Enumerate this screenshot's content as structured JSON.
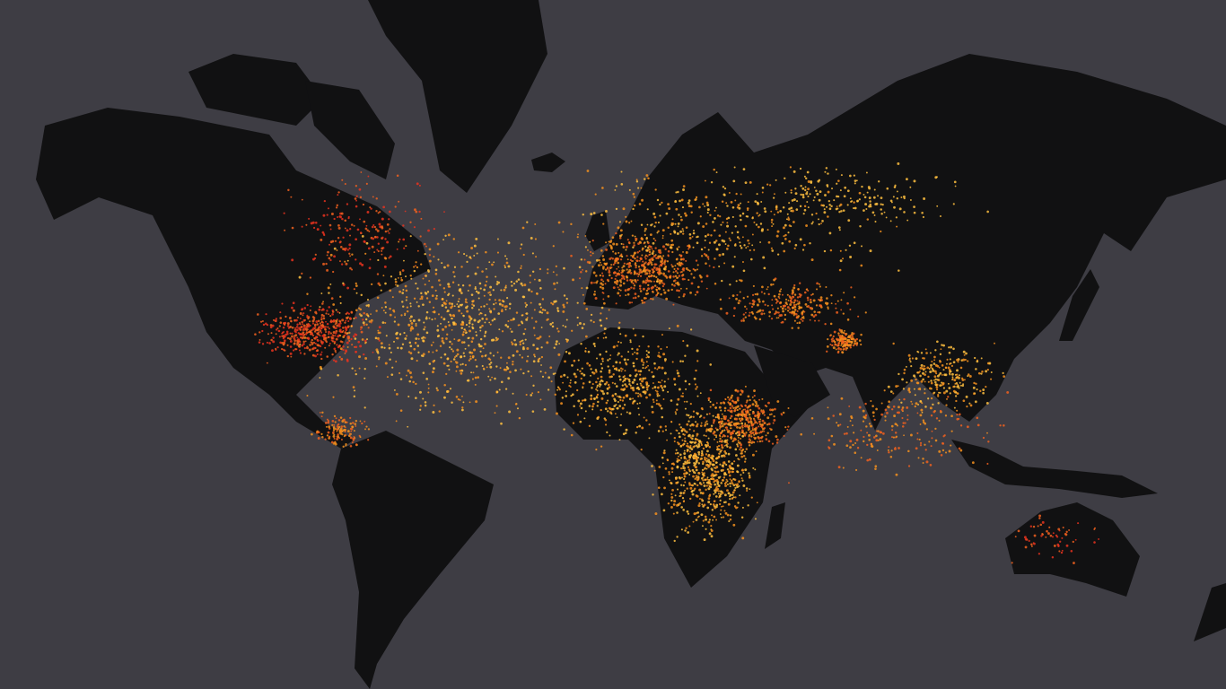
{
  "map": {
    "ocean_color": "#3e3d44",
    "land_color": "#111112",
    "point_colors": [
      "#e8321e",
      "#f0601e",
      "#f5901e",
      "#ffbf40"
    ]
  }
}
